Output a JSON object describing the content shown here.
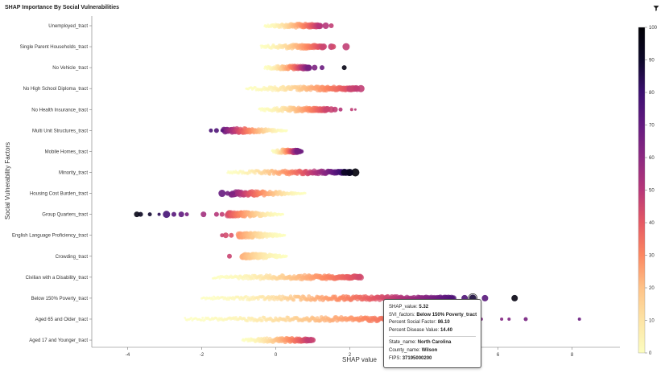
{
  "title": "SHAP Importance By Social Vulnerabilities",
  "icons": {
    "filter": "filter-icon"
  },
  "tooltip": {
    "shap_value_label": "SHAP_value:",
    "shap_value": "5.32",
    "svi_label": "SVI_factors:",
    "svi": "Below 150% Poverty_tract",
    "psf_label": "Percent Social Factor:",
    "psf": "86.10",
    "pdv_label": "Percent Disease Value:",
    "pdv": "14.40",
    "state_label": "State_name:",
    "state": "North Carolina",
    "county_label": "County_name:",
    "county": "Wilson",
    "fips_label": "FIPS:",
    "fips": "37195000200"
  },
  "chart_data": {
    "type": "scatter",
    "title": "SHAP Importance By Social Vulnerabilities",
    "xlabel": "SHAP value",
    "ylabel": "Social Vulnerability Factors",
    "xlim": [
      -5,
      9.3
    ],
    "xticks": [
      -4,
      -2,
      0,
      2,
      4,
      6,
      8
    ],
    "color_scale": {
      "name": "magma",
      "min": 0,
      "max": 100,
      "ticks": [
        0,
        10,
        20,
        30,
        40,
        50,
        60,
        70,
        80,
        90,
        100
      ],
      "colors": [
        "#fcfdbf",
        "#fec287",
        "#fc8761",
        "#e55964",
        "#b73779",
        "#8c2981",
        "#641a80",
        "#3b0f70",
        "#0d0829",
        "#000004"
      ]
    },
    "categories": [
      "Unemployed_tract",
      "Single Parent Households_tract",
      "No Vehicle_tract",
      "No High School Diploma_tract",
      "No Health Insurance_tract",
      "Multi Unit Structures_tract",
      "Mobile Homes_tract",
      "Minority_tract",
      "Housing Cost Burden_tract",
      "Group Quarters_tract",
      "English Language Proficiency_tract",
      "Crowding_tract",
      "Civilian with a Disability_tract",
      "Below 150% Poverty_tract",
      "Aged 65 and Older_tract",
      "Aged 17 and Younger_tract"
    ],
    "series": [
      {
        "category": "Unemployed_tract",
        "min": -0.3,
        "max": 1.2,
        "dir": 1,
        "maxColor": 45,
        "points": [
          [
            1.35,
            45,
            4
          ],
          [
            1.5,
            42,
            3
          ]
        ]
      },
      {
        "category": "Single Parent Households_tract",
        "min": -0.4,
        "max": 1.3,
        "dir": 1,
        "maxColor": 40,
        "points": [
          [
            1.5,
            42,
            4
          ],
          [
            1.55,
            38,
            3.5
          ],
          [
            1.9,
            42,
            4.5
          ]
        ]
      },
      {
        "category": "No Vehicle_tract",
        "min": -0.3,
        "max": 0.9,
        "dir": 1,
        "maxColor": 62,
        "points": [
          [
            1.05,
            60,
            3.5
          ],
          [
            1.25,
            65,
            3
          ],
          [
            1.85,
            95,
            3
          ]
        ]
      },
      {
        "category": "No High School Diploma_tract",
        "min": -0.8,
        "max": 2.2,
        "dir": 1,
        "maxColor": 42,
        "points": [
          [
            2.3,
            42,
            4.5
          ],
          [
            2.0,
            40,
            4
          ]
        ]
      },
      {
        "category": "No Health Insurance_tract",
        "min": -0.45,
        "max": 1.4,
        "dir": 1,
        "maxColor": 40,
        "points": [
          [
            1.5,
            40,
            4
          ],
          [
            1.6,
            42,
            3.5
          ],
          [
            1.75,
            45,
            2.5
          ],
          [
            2.05,
            42,
            2
          ],
          [
            2.15,
            45,
            1.5
          ]
        ]
      },
      {
        "category": "Multi Unit Structures_tract",
        "min": -1.4,
        "max": 0.3,
        "dir": -1,
        "maxColor": 65,
        "points": [
          [
            -1.6,
            72,
            3
          ],
          [
            -1.75,
            74,
            2.5
          ],
          [
            -1.45,
            70,
            2
          ]
        ]
      },
      {
        "category": "Mobile Homes_tract",
        "min": -0.1,
        "max": 0.6,
        "dir": 1,
        "maxColor": 62,
        "points": [
          [
            0.65,
            62,
            3.5
          ],
          [
            0.7,
            64,
            2.5
          ]
        ]
      },
      {
        "category": "Minority_tract",
        "min": -1.3,
        "max": 2.0,
        "dir": 1,
        "maxColor": 88,
        "points": [
          [
            2.15,
            98,
            5
          ],
          [
            2.0,
            92,
            4.5
          ],
          [
            1.85,
            90,
            4
          ]
        ]
      },
      {
        "category": "Housing Cost Burden_tract",
        "min": -1.2,
        "max": 0.8,
        "dir": -1,
        "maxColor": 62,
        "points": [
          [
            -1.45,
            66,
            4.5
          ],
          [
            -1.3,
            63,
            3
          ],
          [
            -1.15,
            60,
            2.5
          ]
        ]
      },
      {
        "category": "Group Quarters_tract",
        "min": -1.3,
        "max": 0.2,
        "dir": -1,
        "maxColor": 38,
        "points": [
          [
            -3.75,
            95,
            3.5
          ],
          [
            -3.65,
            92,
            3
          ],
          [
            -3.4,
            88,
            2.5
          ],
          [
            -3.15,
            82,
            2
          ],
          [
            -2.95,
            75,
            4.5
          ],
          [
            -2.75,
            70,
            3
          ],
          [
            -2.55,
            68,
            3.5
          ],
          [
            -2.4,
            62,
            2.5
          ],
          [
            -1.95,
            50,
            3.5
          ],
          [
            -1.6,
            45,
            3
          ],
          [
            -1.45,
            42,
            3
          ]
        ]
      },
      {
        "category": "English Language Proficiency_tract",
        "min": -1.0,
        "max": 0.25,
        "dir": -1,
        "maxColor": 20,
        "points": [
          [
            -1.35,
            38,
            3.5
          ],
          [
            -1.2,
            35,
            3
          ],
          [
            -1.45,
            40,
            2.5
          ]
        ]
      },
      {
        "category": "Crowding_tract",
        "min": -0.9,
        "max": 0.3,
        "dir": -1,
        "maxColor": 15,
        "points": [
          [
            -1.25,
            40,
            3
          ]
        ]
      },
      {
        "category": "Civilian with a Disability_tract",
        "min": -1.7,
        "max": 2.3,
        "dir": 1,
        "maxColor": 38,
        "points": [
          [
            2.25,
            38,
            3.5
          ]
        ]
      },
      {
        "category": "Below 150% Poverty_tract",
        "min": -2.0,
        "max": 4.8,
        "dir": 1,
        "maxColor": 72,
        "points": [
          [
            5.1,
            72,
            4
          ],
          [
            5.32,
            86,
            4.5
          ],
          [
            5.65,
            70,
            4
          ],
          [
            6.45,
            96,
            4
          ]
        ]
      },
      {
        "category": "Aged 65 and Older_tract",
        "min": -2.45,
        "max": 5.4,
        "dir": 1,
        "maxColor": 58,
        "points": [
          [
            5.55,
            60,
            2
          ],
          [
            6.1,
            58,
            2
          ],
          [
            6.3,
            60,
            2
          ],
          [
            6.75,
            62,
            2.5
          ],
          [
            8.2,
            65,
            2
          ]
        ]
      },
      {
        "category": "Aged 17 and Younger_tract",
        "min": -0.9,
        "max": 0.9,
        "dir": 1,
        "maxColor": 42,
        "points": [
          [
            0.95,
            42,
            4
          ],
          [
            1.0,
            40,
            3.5
          ]
        ]
      }
    ]
  }
}
